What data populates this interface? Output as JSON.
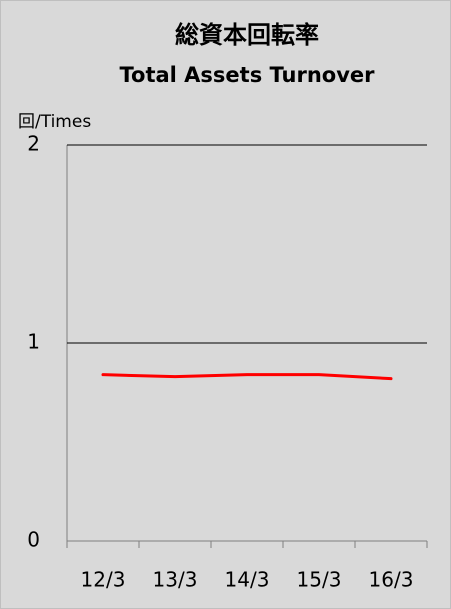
{
  "chart_data": {
    "type": "line",
    "title": "総資本回転率",
    "subtitle": "Total Assets Turnover",
    "y_label": "回/Times",
    "categories": [
      "12/3",
      "13/3",
      "14/3",
      "15/3",
      "16/3"
    ],
    "series": [
      {
        "name": "Total Assets Turnover",
        "color": "#ff0000",
        "values": [
          0.84,
          0.83,
          0.84,
          0.84,
          0.82
        ]
      }
    ],
    "ylim": [
      0,
      2
    ],
    "yticks": [
      0,
      1,
      2
    ],
    "grid": true
  }
}
